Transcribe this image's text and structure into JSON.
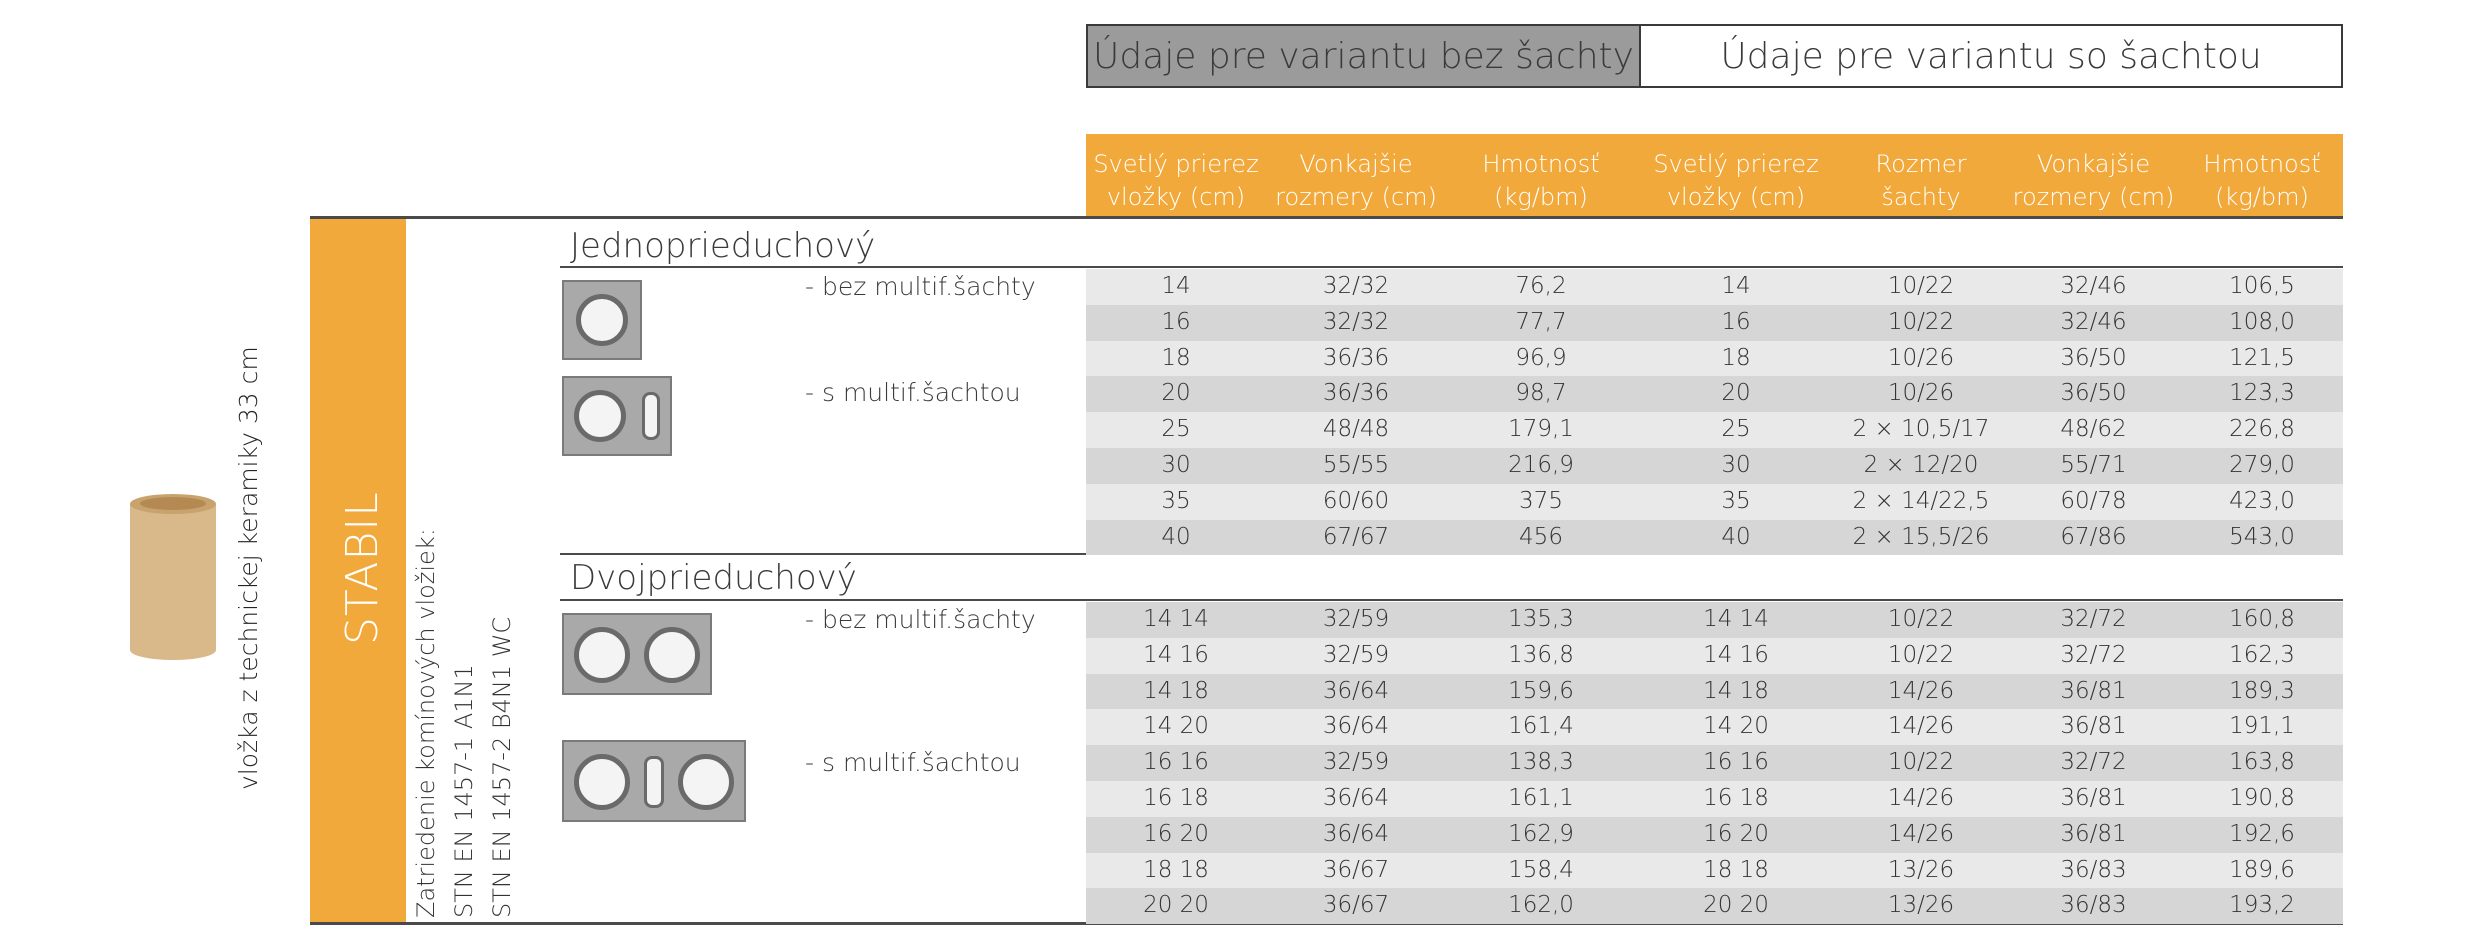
{
  "variant_headers": {
    "without_shaft": "Údaje pre variantu bez šachty",
    "with_shaft": "Údaje pre variantu so šachtou"
  },
  "columns": [
    "Svetlý prierez\nvložky (cm)",
    "Vonkajšie\nrozmery (cm)",
    "Hmotnosť\n(kg/bm)",
    "Svetlý prierez\nvložky (cm)",
    "Rozmer\nšachty",
    "Vonkajšie\nrozmery (cm)",
    "Hmotnosť\n(kg/bm)"
  ],
  "side": {
    "liner_text": "vložka z technickej keramiky 33 cm",
    "brand": "STABIL",
    "classification_title": "Zatriedenie komínových vložiek:",
    "classification_line1": "STN EN 1457-1 A1N1",
    "classification_line2": "STN EN 1457-2 B4N1 WC"
  },
  "sections": [
    {
      "title": "Jednoprieduchový",
      "label_without": "- bez multif.šachty",
      "label_with": "- s multif.šachtou",
      "rows": [
        [
          "14",
          "32/32",
          "76,2",
          "14",
          "10/22",
          "32/46",
          "106,5"
        ],
        [
          "16",
          "32/32",
          "77,7",
          "16",
          "10/22",
          "32/46",
          "108,0"
        ],
        [
          "18",
          "36/36",
          "96,9",
          "18",
          "10/26",
          "36/50",
          "121,5"
        ],
        [
          "20",
          "36/36",
          "98,7",
          "20",
          "10/26",
          "36/50",
          "123,3"
        ],
        [
          "25",
          "48/48",
          "179,1",
          "25",
          "2 × 10,5/17",
          "48/62",
          "226,8"
        ],
        [
          "30",
          "55/55",
          "216,9",
          "30",
          "2 × 12/20",
          "55/71",
          "279,0"
        ],
        [
          "35",
          "60/60",
          "375",
          "35",
          "2 × 14/22,5",
          "60/78",
          "423,0"
        ],
        [
          "40",
          "67/67",
          "456",
          "40",
          "2 × 15,5/26",
          "67/86",
          "543,0"
        ]
      ]
    },
    {
      "title": "Dvojprieduchový",
      "label_without": "- bez multif.šachty",
      "label_with": "- s multif.šachtou",
      "rows": [
        [
          "14 14",
          "32/59",
          "135,3",
          "14 14",
          "10/22",
          "32/72",
          "160,8"
        ],
        [
          "14 16",
          "32/59",
          "136,8",
          "14 16",
          "10/22",
          "32/72",
          "162,3"
        ],
        [
          "14 18",
          "36/64",
          "159,6",
          "14 18",
          "14/26",
          "36/81",
          "189,3"
        ],
        [
          "14 20",
          "36/64",
          "161,4",
          "14 20",
          "14/26",
          "36/81",
          "191,1"
        ],
        [
          "16 16",
          "32/59",
          "138,3",
          "16 16",
          "10/22",
          "32/72",
          "163,8"
        ],
        [
          "16 18",
          "36/64",
          "161,1",
          "16 18",
          "14/26",
          "36/81",
          "190,8"
        ],
        [
          "16 20",
          "36/64",
          "162,9",
          "16 20",
          "14/26",
          "36/81",
          "192,6"
        ],
        [
          "18 18",
          "36/67",
          "158,4",
          "18 18",
          "13/26",
          "36/83",
          "189,6"
        ],
        [
          "20 20",
          "36/67",
          "162,0",
          "20 20",
          "13/26",
          "36/83",
          "193,2"
        ]
      ]
    }
  ],
  "colors": {
    "accent": "#f2a93b",
    "header_gray": "#9b9b9b",
    "row_dark": "#d6d6d6",
    "row_light": "#e8e8e8"
  }
}
